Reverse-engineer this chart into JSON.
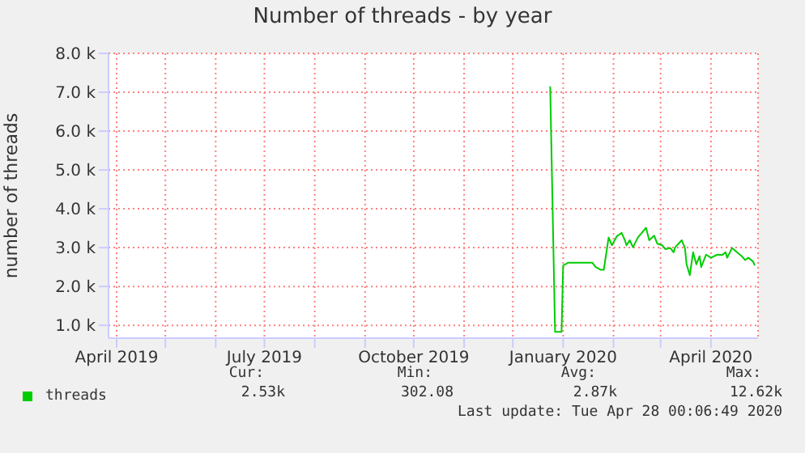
{
  "chart_data": {
    "type": "line",
    "title": "Number of threads - by year",
    "ylabel": "number of threads",
    "x": [
      "2019-12-24",
      "2019-12-27",
      "2019-12-31",
      "2020-01-01",
      "2020-01-04",
      "2020-01-19",
      "2020-01-21",
      "2020-01-24",
      "2020-01-26",
      "2020-01-29",
      "2020-01-31",
      "2020-02-03",
      "2020-02-06",
      "2020-02-08",
      "2020-02-09",
      "2020-02-11",
      "2020-02-13",
      "2020-02-16",
      "2020-02-21",
      "2020-02-23",
      "2020-02-26",
      "2020-02-28",
      "2020-03-02",
      "2020-03-04",
      "2020-03-07",
      "2020-03-09",
      "2020-03-10",
      "2020-03-14",
      "2020-03-16",
      "2020-03-17",
      "2020-03-19",
      "2020-03-21",
      "2020-03-23",
      "2020-03-25",
      "2020-03-26",
      "2020-03-29",
      "2020-04-01",
      "2020-04-05",
      "2020-04-08",
      "2020-04-10",
      "2020-04-11",
      "2020-04-14",
      "2020-04-16",
      "2020-04-20",
      "2020-04-22",
      "2020-04-24",
      "2020-04-27",
      "2020-04-28"
    ],
    "series": [
      {
        "name": "threads",
        "color": "#00cc00",
        "values": [
          7150,
          830,
          830,
          2540,
          2610,
          2610,
          2500,
          2430,
          2430,
          3260,
          3060,
          3290,
          3380,
          3190,
          3060,
          3190,
          3010,
          3260,
          3510,
          3190,
          3310,
          3100,
          3060,
          2960,
          2990,
          2880,
          3010,
          3190,
          2990,
          2570,
          2290,
          2880,
          2570,
          2780,
          2500,
          2820,
          2740,
          2820,
          2810,
          2880,
          2740,
          2990,
          2920,
          2780,
          2680,
          2740,
          2640,
          2540
        ]
      }
    ],
    "xlim": [
      "2019-03-27",
      "2020-04-30"
    ],
    "xticks": [
      {
        "value": "2019-04-01",
        "label": "April 2019"
      },
      {
        "value": "2019-05-01",
        "label": null
      },
      {
        "value": "2019-06-01",
        "label": null
      },
      {
        "value": "2019-07-01",
        "label": "July 2019"
      },
      {
        "value": "2019-08-01",
        "label": null
      },
      {
        "value": "2019-09-01",
        "label": null
      },
      {
        "value": "2019-10-01",
        "label": "October 2019"
      },
      {
        "value": "2019-11-01",
        "label": null
      },
      {
        "value": "2019-12-01",
        "label": null
      },
      {
        "value": "2020-01-01",
        "label": "January 2020"
      },
      {
        "value": "2020-02-01",
        "label": null
      },
      {
        "value": "2020-03-01",
        "label": null
      },
      {
        "value": "2020-04-01",
        "label": "April 2020"
      }
    ],
    "ylim": [
      670,
      8000
    ],
    "yticks": [
      {
        "value": 1000,
        "label": "1.0 k"
      },
      {
        "value": 2000,
        "label": "2.0 k"
      },
      {
        "value": 3000,
        "label": "3.0 k"
      },
      {
        "value": 4000,
        "label": "4.0 k"
      },
      {
        "value": 5000,
        "label": "5.0 k"
      },
      {
        "value": 6000,
        "label": "6.0 k"
      },
      {
        "value": 7000,
        "label": "7.0 k"
      },
      {
        "value": 8000,
        "label": "8.0 k"
      }
    ],
    "grid": true,
    "legend": "bottom left",
    "marker": "none",
    "line_style": "solid",
    "annotations": [
      "Cur:",
      "2.53k",
      "Min:",
      "302.08",
      "Avg:",
      "2.87k",
      "Max:",
      "12.62k",
      "Last update: Tue Apr 28 00:06:49 2020"
    ]
  }
}
